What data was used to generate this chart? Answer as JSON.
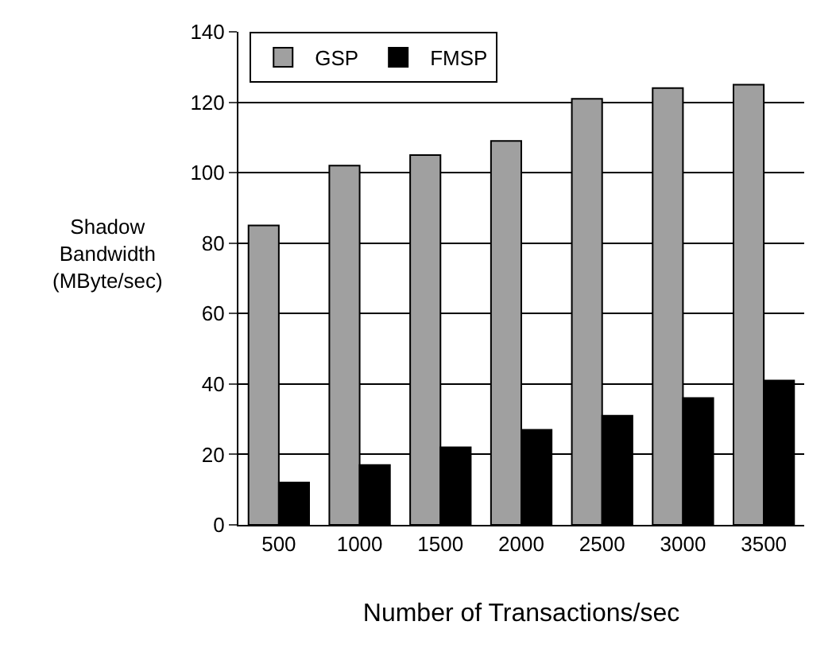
{
  "chart_data": {
    "type": "bar",
    "xlabel": "Number of Transactions/sec",
    "ylabel": "Shadow Bandwidth (MByte/sec)",
    "categories": [
      "500",
      "1000",
      "1500",
      "2000",
      "2500",
      "3000",
      "3500"
    ],
    "series": [
      {
        "name": "GSP",
        "color": "#a0a0a0",
        "values": [
          85,
          102,
          105,
          109,
          121,
          124,
          125
        ]
      },
      {
        "name": "FMSP",
        "color": "#000000",
        "values": [
          12,
          17,
          22,
          27,
          31,
          36,
          41
        ]
      }
    ],
    "ylim": [
      0,
      140
    ],
    "yticks": [
      0,
      20,
      40,
      60,
      80,
      100,
      120,
      140
    ],
    "grid": "y",
    "legend": "top left"
  }
}
